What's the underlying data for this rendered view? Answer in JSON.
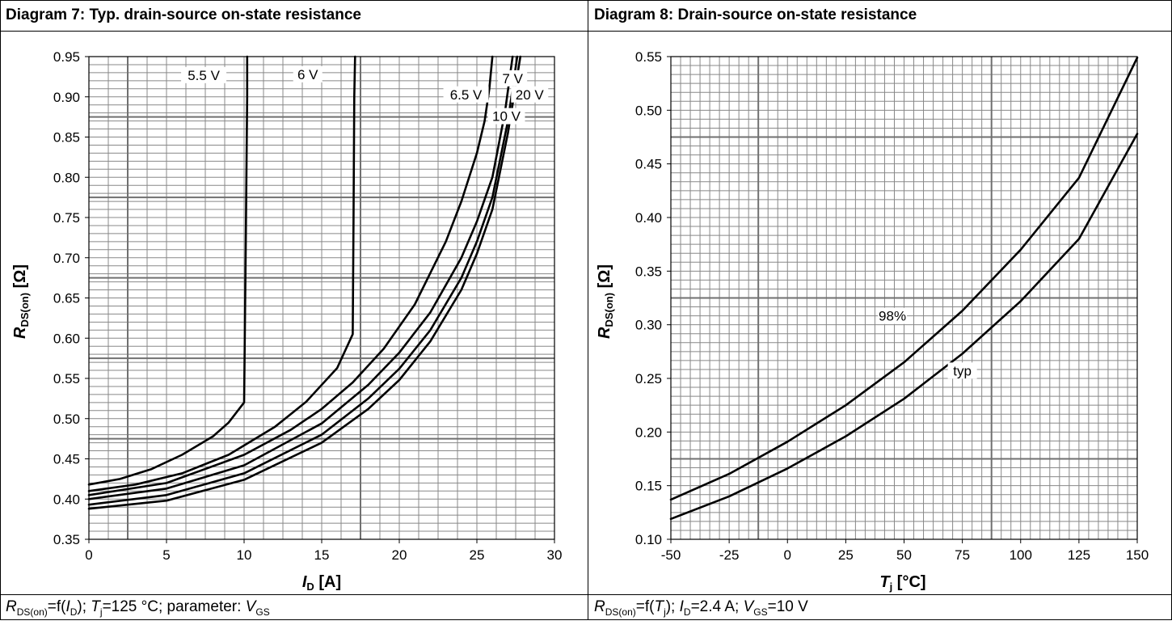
{
  "diagram7": {
    "title": "Diagram 7: Typ. drain-source on-state resistance",
    "caption": {
      "r_main": "R",
      "r_sub": "DS(on)",
      "a": "=f(",
      "i_main": "I",
      "i_sub": "D",
      "b": "); ",
      "t_main": "T",
      "t_sub": "j",
      "c": "=125 °C; parameter: ",
      "v_main": "V",
      "v_sub": "GS"
    },
    "axes": {
      "xlabel_main": "I",
      "xlabel_sub": "D",
      "xlabel_unit": " [A]",
      "ylabel_main": "R",
      "ylabel_sub": "DS(on)",
      "ylabel_unit": " [Ω]"
    }
  },
  "diagram8": {
    "title": "Diagram 8: Drain-source on-state resistance",
    "caption": {
      "r_main": "R",
      "r_sub": "DS(on)",
      "a": "=f(",
      "t_main": "T",
      "t_sub": "j",
      "b": "); ",
      "i_main": "I",
      "i_sub": "D",
      "c": "=2.4 A; ",
      "v_main": "V",
      "v_sub": "GS",
      "d": "=10 V"
    },
    "axes": {
      "xlabel_main": "T",
      "xlabel_sub": "j",
      "xlabel_unit": " [°C]",
      "ylabel_main": "R",
      "ylabel_sub": "DS(on)",
      "ylabel_unit": " [Ω]"
    }
  },
  "colors": {
    "grid_minor": "#888888",
    "grid_major": "#707070",
    "line": "#000000",
    "frame": "#000000"
  },
  "chart_data": [
    {
      "type": "line",
      "xlim": [
        0,
        30
      ],
      "ylim": [
        0.35,
        0.95
      ],
      "xticks": [
        "0",
        "5",
        "10",
        "15",
        "20",
        "25",
        "30"
      ],
      "yticks": [
        "0.35",
        "0.40",
        "0.45",
        "0.50",
        "0.55",
        "0.60",
        "0.65",
        "0.70",
        "0.75",
        "0.80",
        "0.85",
        "0.90",
        "0.95"
      ],
      "grid": true,
      "series": [
        {
          "name": "5.5 V",
          "x": [
            0,
            2,
            4,
            6,
            8,
            9,
            10,
            10.1,
            10.2,
            10.2
          ],
          "y": [
            0.418,
            0.425,
            0.437,
            0.455,
            0.478,
            0.495,
            0.52,
            0.7,
            0.9,
            0.95
          ]
        },
        {
          "name": "6 V",
          "x": [
            0,
            3,
            6,
            9,
            12,
            14,
            16,
            17,
            17.05,
            17.1,
            17.15
          ],
          "y": [
            0.41,
            0.418,
            0.432,
            0.455,
            0.49,
            0.521,
            0.563,
            0.605,
            0.75,
            0.9,
            0.95
          ]
        },
        {
          "name": "6.5 V",
          "x": [
            0,
            5,
            10,
            13,
            15,
            17,
            19,
            21,
            23,
            24,
            25,
            25.5,
            25.8,
            26
          ],
          "y": [
            0.405,
            0.42,
            0.455,
            0.486,
            0.512,
            0.545,
            0.587,
            0.642,
            0.72,
            0.77,
            0.83,
            0.87,
            0.91,
            0.95
          ]
        },
        {
          "name": "7 V",
          "x": [
            0,
            5,
            10,
            15,
            18,
            20,
            22,
            24,
            25,
            26,
            26.8,
            27.3
          ],
          "y": [
            0.4,
            0.413,
            0.442,
            0.494,
            0.542,
            0.582,
            0.632,
            0.7,
            0.745,
            0.8,
            0.88,
            0.95
          ]
        },
        {
          "name": "20 V",
          "x": [
            0,
            5,
            10,
            15,
            18,
            20,
            22,
            24,
            25,
            26,
            27,
            27.6
          ],
          "y": [
            0.393,
            0.405,
            0.432,
            0.48,
            0.525,
            0.562,
            0.61,
            0.675,
            0.72,
            0.775,
            0.87,
            0.95
          ]
        },
        {
          "name": "10 V",
          "x": [
            0,
            5,
            10,
            15,
            18,
            20,
            22,
            24,
            25,
            26,
            27,
            27.8
          ],
          "y": [
            0.388,
            0.398,
            0.424,
            0.47,
            0.512,
            0.548,
            0.596,
            0.66,
            0.705,
            0.76,
            0.855,
            0.95
          ]
        }
      ],
      "labels": [
        {
          "text": "5.5 V",
          "x": 7.4,
          "y": 0.924
        },
        {
          "text": "6 V",
          "x": 14.1,
          "y": 0.925
        },
        {
          "text": "6.5 V",
          "x": 24.3,
          "y": 0.9
        },
        {
          "text": "7 V",
          "x": 27.3,
          "y": 0.92
        },
        {
          "text": "20 V",
          "x": 28.4,
          "y": 0.9
        },
        {
          "text": "10 V",
          "x": 26.9,
          "y": 0.873
        }
      ]
    },
    {
      "type": "line",
      "xlim": [
        -50,
        150
      ],
      "ylim": [
        0.1,
        0.55
      ],
      "xticks": [
        "-50",
        "-25",
        "0",
        "25",
        "50",
        "75",
        "100",
        "125",
        "150"
      ],
      "yticks": [
        "0.10",
        "0.15",
        "0.20",
        "0.25",
        "0.30",
        "0.35",
        "0.40",
        "0.45",
        "0.50",
        "0.55"
      ],
      "grid": true,
      "series": [
        {
          "name": "98%",
          "x": [
            -50,
            -25,
            0,
            25,
            50,
            75,
            100,
            125,
            150
          ],
          "y": [
            0.137,
            0.161,
            0.191,
            0.225,
            0.265,
            0.313,
            0.37,
            0.437,
            0.549
          ]
        },
        {
          "name": "typ",
          "x": [
            -50,
            -25,
            0,
            25,
            50,
            75,
            100,
            125,
            150
          ],
          "y": [
            0.119,
            0.14,
            0.166,
            0.196,
            0.231,
            0.273,
            0.322,
            0.38,
            0.478
          ]
        }
      ],
      "labels": [
        {
          "text": "98%",
          "x": 45,
          "y": 0.306
        },
        {
          "text": "typ",
          "x": 75,
          "y": 0.255
        }
      ]
    }
  ]
}
